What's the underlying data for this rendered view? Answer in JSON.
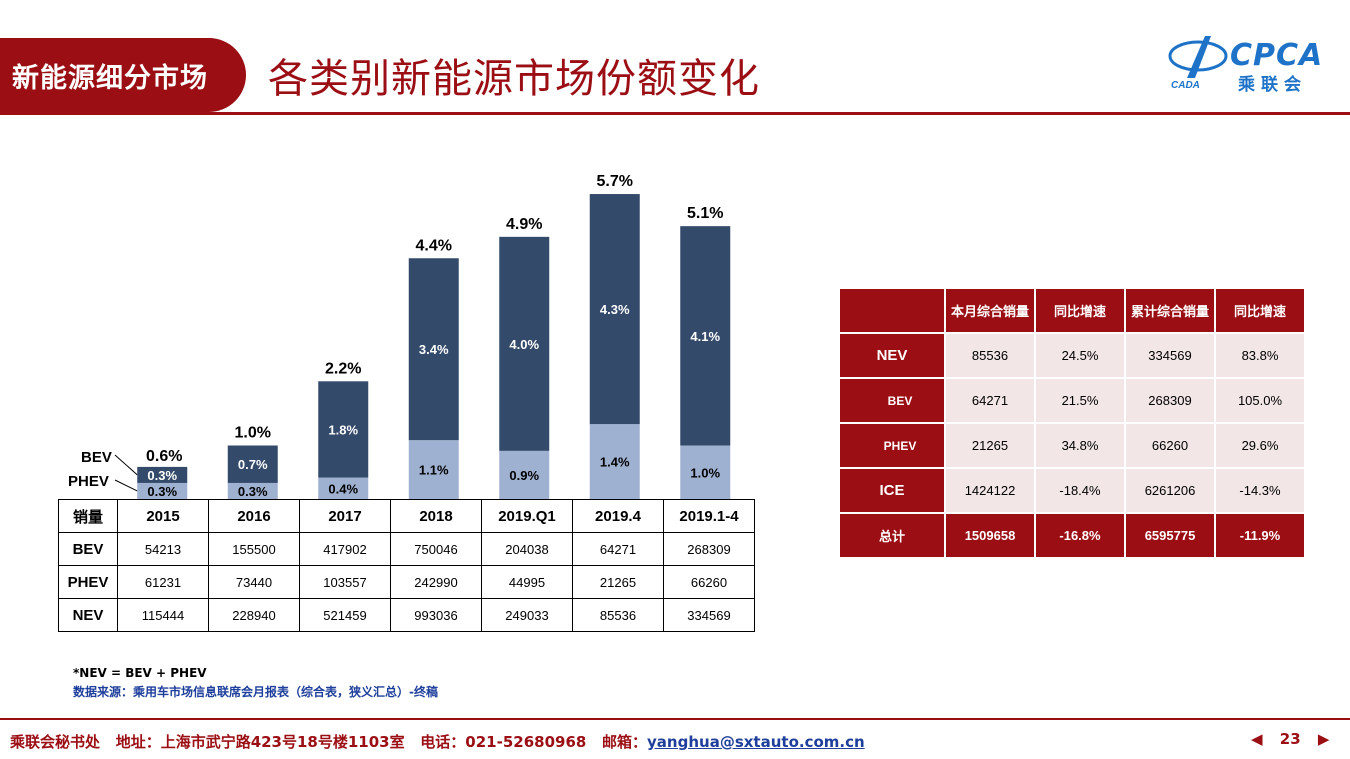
{
  "header": {
    "section_label": "新能源细分市场",
    "title": "各类别新能源市场份额变化",
    "logo_text": "CPCA",
    "logo_sub": "乘联会",
    "logo_badge": "CADA"
  },
  "colors": {
    "brand": "#9b0e14",
    "bev": "#344a6b",
    "phev": "#9fb1d1",
    "link": "#1f3f9c"
  },
  "chart_data": {
    "type": "bar",
    "stacked": true,
    "categories": [
      "2015",
      "2016",
      "2017",
      "2018",
      "2019.Q1",
      "2019.4",
      "2019.1-4"
    ],
    "series": [
      {
        "name": "PHEV",
        "values": [
          0.3,
          0.3,
          0.4,
          1.1,
          0.9,
          1.4,
          1.0
        ],
        "labels": [
          "0.3%",
          "0.3%",
          "0.4%",
          "1.1%",
          "0.9%",
          "1.4%",
          "1.0%"
        ]
      },
      {
        "name": "BEV",
        "values": [
          0.3,
          0.7,
          1.8,
          3.4,
          4.0,
          4.3,
          4.1
        ],
        "labels": [
          "0.3%",
          "0.7%",
          "1.8%",
          "3.4%",
          "4.0%",
          "4.3%",
          "4.1%"
        ]
      }
    ],
    "totals": [
      0.6,
      1.0,
      2.2,
      4.4,
      4.9,
      5.7,
      5.1
    ],
    "total_labels": [
      "0.6%",
      "1.0%",
      "2.2%",
      "4.4%",
      "4.9%",
      "5.7%",
      "5.1%"
    ],
    "ylim": [
      0,
      6
    ],
    "legend_callouts": [
      "BEV",
      "PHEV"
    ]
  },
  "history_table": {
    "header": [
      "销量",
      "2015",
      "2016",
      "2017",
      "2018",
      "2019.Q1",
      "2019.4",
      "2019.1-4"
    ],
    "rows": [
      [
        "BEV",
        "54213",
        "155500",
        "417902",
        "750046",
        "204038",
        "64271",
        "268309"
      ],
      [
        "PHEV",
        "61231",
        "73440",
        "103557",
        "242990",
        "44995",
        "21265",
        "66260"
      ],
      [
        "NEV",
        "115444",
        "228940",
        "521459",
        "993036",
        "249033",
        "85536",
        "334569"
      ]
    ]
  },
  "month_table": {
    "header": [
      "",
      "本月综合销量",
      "同比增速",
      "累计综合销量",
      "同比增速"
    ],
    "rows": [
      [
        "NEV",
        "85536",
        "24.5%",
        "334569",
        "83.8%"
      ],
      [
        "BEV",
        "64271",
        "21.5%",
        "268309",
        "105.0%"
      ],
      [
        "PHEV",
        "21265",
        "34.8%",
        "66260",
        "29.6%"
      ],
      [
        "ICE",
        "1424122",
        "-18.4%",
        "6261206",
        "-14.3%"
      ],
      [
        "总计",
        "1509658",
        "-16.8%",
        "6595775",
        "-11.9%"
      ]
    ]
  },
  "notes": {
    "formula": "*NEV = BEV + PHEV",
    "source": "数据来源：乘用车市场信息联席会月报表（综合表，狭义汇总）-终稿"
  },
  "footer": {
    "org": "乘联会秘书处",
    "address": "地址：上海市武宁路423号18号楼1103室",
    "phone": "电话：021-52680968",
    "email_label": "邮箱：",
    "email": "yanghua@sxtauto.com.cn",
    "page": "23"
  }
}
